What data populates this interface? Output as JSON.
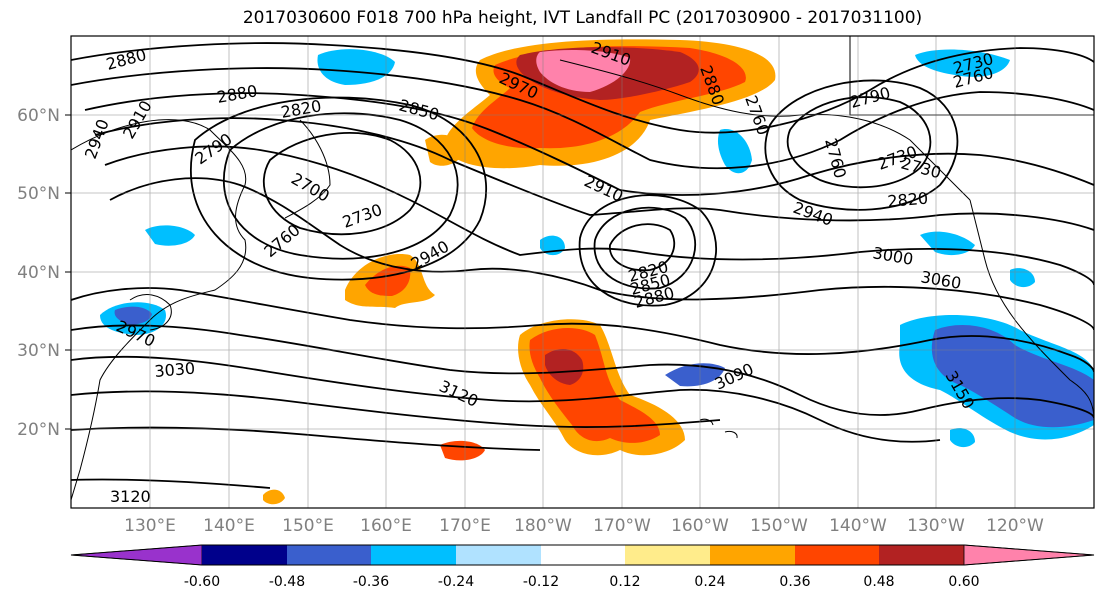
{
  "title": "2017030600 F018 700 hPa height, IVT Landfall PC (2017030900 - 2017031100)",
  "lat_labels": [
    "60°N",
    "50°N",
    "40°N",
    "30°N",
    "20°N"
  ],
  "lon_labels": [
    "130°E",
    "140°E",
    "150°E",
    "160°E",
    "170°E",
    "180°W",
    "170°W",
    "160°W",
    "150°W",
    "140°W",
    "130°W",
    "120°W"
  ],
  "colorbar": {
    "colors": [
      "#9932cc",
      "#00008b",
      "#3a5fcd",
      "#00bfff",
      "#b0e2ff",
      "#ffffff",
      "#ffec8b",
      "#ffa500",
      "#ff4500",
      "#b22222",
      "#ff82ab"
    ],
    "tick_labels": [
      "-0.60",
      "-0.48",
      "-0.36",
      "-0.24",
      "-0.12",
      "0.12",
      "0.24",
      "0.36",
      "0.48",
      "0.60"
    ]
  },
  "contour_labels": [
    "2880",
    "2910",
    "2940",
    "2880",
    "2820",
    "2850",
    "2970",
    "2910",
    "2880",
    "2790",
    "2760",
    "2700",
    "2730",
    "2760",
    "2910",
    "2940",
    "2820",
    "2850",
    "2880",
    "2940",
    "3000",
    "3060",
    "2790",
    "2760",
    "2730",
    "2820",
    "2760",
    "2730",
    "3030",
    "3120",
    "3090",
    "3150",
    "3120",
    "2970",
    "2730"
  ]
}
